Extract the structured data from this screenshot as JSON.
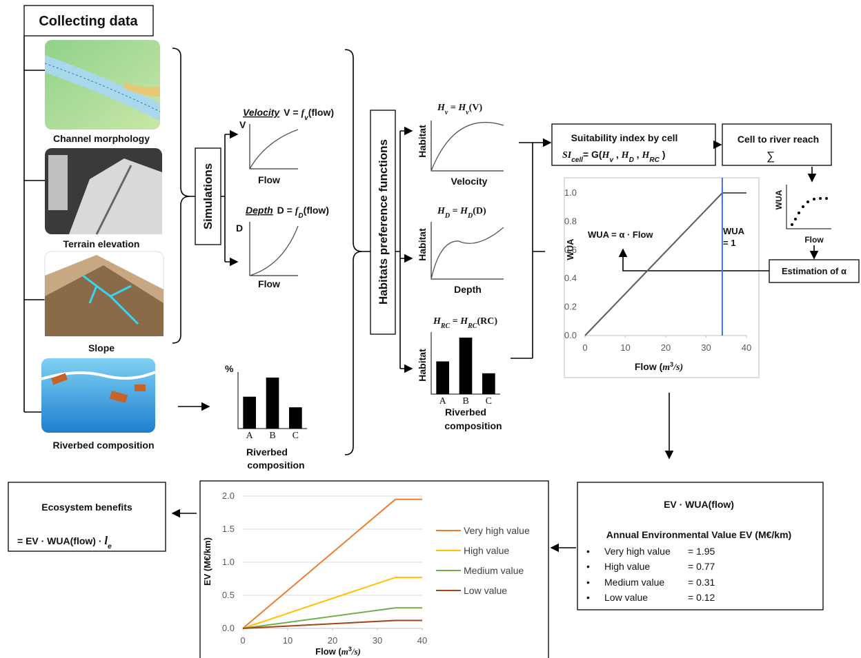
{
  "collecting": {
    "title": "Collecting data",
    "sources": [
      "Channel morphology",
      "Terrain elevation",
      "Slope",
      "Riverbed composition"
    ]
  },
  "simulations": {
    "label": "Simulations",
    "velocity": {
      "title": [
        "Velocity",
        "V = ",
        "f",
        "v",
        "(flow)"
      ],
      "y_label": "V",
      "x_label": "Flow"
    },
    "depth": {
      "title": [
        "Depth",
        "D = ",
        "f",
        "D",
        "(flow)"
      ],
      "y_label": "D",
      "x_label": "Flow"
    }
  },
  "habitats": {
    "label": "Habitats preference functions",
    "velocity": {
      "title": [
        "H",
        "v",
        " = ",
        "H",
        "v",
        "(V)"
      ],
      "y_label": "Habitat",
      "x_label": "Velocity"
    },
    "depth": {
      "title": [
        "H",
        "D",
        " = ",
        "H",
        "D",
        "(D)"
      ],
      "y_label": "Habitat",
      "x_label": "Depth"
    }
  },
  "suitability": {
    "title": "Suitability index by cell",
    "formula": [
      "SI",
      "cell",
      "= G(",
      "H",
      "v",
      " , ",
      "H",
      "D",
      " , ",
      "H",
      "RC",
      " )"
    ]
  },
  "reach": {
    "title": "Cell to river reach",
    "symbol": "∑",
    "y_label": "WUA",
    "x_label": "Flow"
  },
  "estimation": "Estimation of α",
  "ev_box": {
    "title": "EV · WUA(flow)",
    "heading": "Annual Environmental Value  EV (M€/km)",
    "items": [
      {
        "label": "Very high value",
        "value": "= 1.95"
      },
      {
        "label": "High value",
        "value": "= 0.77"
      },
      {
        "label": "Medium value",
        "value": "= 0.31"
      },
      {
        "label": "Low value",
        "value": "= 0.12"
      }
    ]
  },
  "benefits": {
    "title": "Ecosystem benefits",
    "formula": [
      "= EV · WUA(flow) · ",
      "l",
      "e"
    ]
  },
  "chart_data": [
    {
      "type": "bar",
      "y_label": "%",
      "categories": [
        "A",
        "B",
        "C"
      ],
      "values": [
        45,
        72,
        30
      ],
      "color": "#000000",
      "x_label": [
        "Riverbed",
        "composition"
      ]
    },
    {
      "type": "bar",
      "title": [
        "H",
        "RC",
        " = ",
        "H",
        "RC",
        "(RC)"
      ],
      "y_label": "Habitat",
      "categories": [
        "A",
        "B",
        "C"
      ],
      "values": [
        55,
        95,
        35
      ],
      "color": "#000000",
      "x_label": [
        "Riverbed",
        "composition"
      ]
    },
    {
      "type": "line",
      "y_label": "WUA",
      "x_label": [
        "Flow (",
        "m",
        "3",
        "/s)"
      ],
      "x": [
        0,
        34,
        40
      ],
      "values": [
        0,
        1,
        1
      ],
      "color": "#595959",
      "xlim": [
        0,
        40
      ],
      "xticks": [
        0,
        10,
        20,
        30,
        40
      ],
      "ylim": [
        0,
        1
      ],
      "yticks": [
        {
          "value": 0,
          "label": "0.0"
        },
        0.2,
        0.4,
        0.6,
        0.8,
        {
          "value": 1,
          "label": "1.0"
        }
      ],
      "grid": false,
      "vline": {
        "x": 34,
        "color": "#4472c4"
      },
      "annotations": [
        "WUA = α · Flow",
        "WUA",
        "= 1"
      ]
    },
    {
      "type": "line",
      "y_label": "EV (M€/km)",
      "x_label": [
        "Flow (",
        "m",
        "3",
        "/s)"
      ],
      "x": [
        0,
        34,
        40
      ],
      "series": [
        {
          "name": "Very high value",
          "color": "#ed7d31",
          "values": [
            0,
            1.95,
            1.95
          ]
        },
        {
          "name": "High value",
          "color": "#ffc000",
          "values": [
            0,
            0.77,
            0.77
          ]
        },
        {
          "name": "Medium value",
          "color": "#70ad47",
          "values": [
            0,
            0.31,
            0.31
          ]
        },
        {
          "name": "Low value",
          "color": "#a0441c",
          "values": [
            0,
            0.12,
            0.12
          ]
        }
      ],
      "xlim": [
        0,
        40
      ],
      "xticks": [
        0,
        10,
        20,
        30,
        40
      ],
      "ylim": [
        0,
        2
      ],
      "yticks": [
        {
          "value": 0,
          "label": "0.0"
        },
        0.5,
        {
          "value": 1,
          "label": "1.0"
        },
        1.5,
        {
          "value": 2,
          "label": "2.0"
        }
      ],
      "grid": true
    }
  ]
}
